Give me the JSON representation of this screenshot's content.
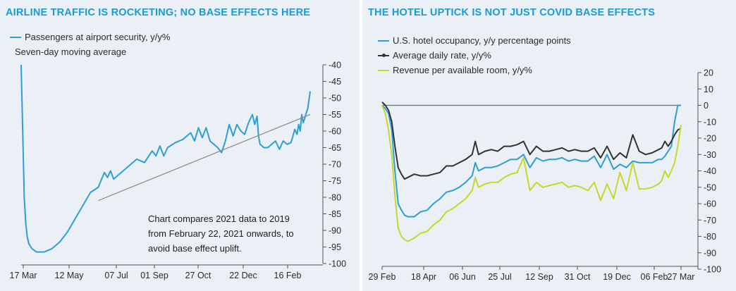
{
  "chart_data": [
    {
      "type": "line",
      "title": "AIRLINE TRAFFIC IS ROCKETING; NO BASE EFFECTS HERE",
      "legend": [
        {
          "label": "Passengers at airport security, y/y%",
          "color": "#2e9fd2"
        },
        {
          "label": "Seven-day moving average"
        }
      ],
      "note": [
        "Chart compares 2021 data to 2019",
        "from February 22, 2021 onwards, to",
        "avoid base effect uplift."
      ],
      "x_tick_labels": [
        "17 Mar",
        "12 May",
        "07 Jul",
        "01 Sep",
        "27 Oct",
        "22 Dec",
        "16 Feb"
      ],
      "ylim": [
        -100,
        -40
      ],
      "y_ticks": [
        -40,
        -45,
        -50,
        -55,
        -60,
        -65,
        -70,
        -75,
        -80,
        -85,
        -90,
        -95,
        -100
      ],
      "y_axis_side": "right",
      "series": [
        {
          "name": "Passengers at airport security, y/y%",
          "color": "#2e9fd2",
          "x": [
            0,
            2,
            4,
            6,
            8,
            10,
            14,
            20,
            30,
            40,
            50,
            60,
            70,
            80,
            90,
            100,
            108,
            112,
            116,
            120,
            130,
            140,
            150,
            160,
            170,
            175,
            180,
            185,
            190,
            200,
            210,
            220,
            225,
            230,
            235,
            240,
            245,
            250,
            255,
            260,
            265,
            270,
            275,
            280,
            285,
            290,
            295,
            300,
            303,
            306,
            308,
            310,
            315,
            320,
            325,
            330,
            335,
            340,
            345,
            350,
            352,
            355,
            358,
            360,
            362,
            364,
            366,
            368,
            370,
            372,
            375
          ],
          "values": [
            -40,
            -60,
            -80,
            -88,
            -92,
            -94,
            -95.5,
            -96.5,
            -96.5,
            -95.5,
            -93.5,
            -90.5,
            -86.5,
            -82.5,
            -78.5,
            -77,
            -72.5,
            -74,
            -72,
            -74.5,
            -72.5,
            -70.5,
            -68.5,
            -69.5,
            -66,
            -67.5,
            -64.5,
            -67.5,
            -65,
            -63.5,
            -62.5,
            -60.5,
            -63,
            -59,
            -62,
            -59,
            -63,
            -64,
            -65,
            -66.5,
            -63,
            -58,
            -61.5,
            -58,
            -60,
            -61,
            -57.5,
            -55,
            -58,
            -55.5,
            -61.5,
            -64,
            -65,
            -65,
            -64,
            -63,
            -65.5,
            -63,
            -64,
            -63.5,
            -62,
            -59.5,
            -61,
            -58,
            -60,
            -55,
            -57.5,
            -56,
            -54.5,
            -53,
            -48
          ]
        },
        {
          "name": "Trend line",
          "color": "#8c8c8c",
          "x": [
            100,
            375
          ],
          "values": [
            -81,
            -55
          ]
        }
      ]
    },
    {
      "type": "line",
      "title": "THE HOTEL UPTICK IS NOT JUST COVID BASE EFFECTS",
      "legend": [
        {
          "label": "U.S. hotel occupancy, y/y percentage points",
          "color": "#2e9fd2"
        },
        {
          "label": "Average daily rate, y/y%",
          "color": "#333333"
        },
        {
          "label": "Revenue per available room, y/y%",
          "color": "#c8d62c"
        }
      ],
      "x_tick_labels": [
        "29 Feb",
        "18 Apr",
        "06 Jun",
        "25 Jul",
        "12 Sep",
        "31 Oct",
        "19 Dec",
        "06 Feb",
        "27 Mar"
      ],
      "ylim": [
        -100,
        20
      ],
      "y_ticks": [
        20,
        10,
        0,
        -10,
        -20,
        -30,
        -40,
        -50,
        -60,
        -70,
        -80,
        -90,
        -100
      ],
      "y_axis_side": "right",
      "series": [
        {
          "name": "U.S. hotel occupancy, y/y percentage points",
          "color": "#2e9fd2",
          "x": [
            0,
            1,
            2,
            3,
            4,
            5,
            6,
            7,
            8,
            10,
            12,
            14,
            16,
            18,
            20,
            22,
            24,
            26,
            28,
            29,
            30,
            32,
            34,
            36,
            38,
            40,
            42,
            44,
            46,
            48,
            50,
            52,
            54,
            56,
            58,
            60,
            62,
            64,
            66,
            68,
            70,
            72,
            74,
            76,
            78,
            80,
            82,
            84,
            86,
            87,
            88,
            89,
            90,
            91,
            92,
            93
          ],
          "values": [
            0,
            -2,
            -5,
            -15,
            -40,
            -60,
            -64,
            -67,
            -68,
            -68,
            -65,
            -64,
            -60,
            -57,
            -53,
            -52,
            -50,
            -47,
            -43,
            -35,
            -40,
            -38,
            -38,
            -37,
            -35,
            -33,
            -33,
            -30,
            -38,
            -32,
            -34,
            -33,
            -33,
            -32,
            -34,
            -33,
            -34,
            -34,
            -31,
            -38,
            -30,
            -39,
            -36,
            -38,
            -34,
            -35,
            -35,
            -35,
            -33,
            -33,
            -31,
            -28,
            -25,
            -10,
            0,
            0
          ]
        },
        {
          "name": "Average daily rate, y/y%",
          "color": "#333333",
          "x": [
            0,
            1,
            2,
            3,
            4,
            5,
            6,
            7,
            8,
            10,
            12,
            14,
            16,
            18,
            20,
            22,
            24,
            26,
            28,
            29,
            30,
            32,
            34,
            36,
            38,
            40,
            42,
            44,
            46,
            48,
            50,
            52,
            54,
            56,
            58,
            60,
            62,
            64,
            66,
            68,
            70,
            72,
            74,
            76,
            78,
            80,
            82,
            84,
            86,
            87,
            88,
            89,
            90,
            91,
            92,
            93
          ],
          "values": [
            2,
            0,
            -3,
            -10,
            -25,
            -38,
            -42,
            -45,
            -44,
            -42,
            -43,
            -43,
            -42,
            -41,
            -37,
            -37,
            -35,
            -33,
            -30,
            -22,
            -30,
            -28,
            -27,
            -28,
            -25,
            -25,
            -24,
            -22,
            -30,
            -25,
            -28,
            -28,
            -27,
            -26,
            -28,
            -27,
            -28,
            -28,
            -26,
            -32,
            -25,
            -33,
            -29,
            -32,
            -18,
            -28,
            -30,
            -29,
            -27,
            -26,
            -22,
            -25,
            -22,
            -18,
            -15,
            -14
          ]
        },
        {
          "name": "Revenue per available room, y/y%",
          "color": "#c8d62c",
          "x": [
            0,
            1,
            2,
            3,
            4,
            5,
            6,
            7,
            8,
            10,
            12,
            14,
            16,
            18,
            20,
            22,
            24,
            26,
            28,
            29,
            30,
            32,
            34,
            36,
            38,
            40,
            42,
            44,
            46,
            48,
            50,
            52,
            54,
            56,
            58,
            60,
            62,
            64,
            66,
            68,
            70,
            72,
            74,
            76,
            78,
            80,
            82,
            84,
            86,
            87,
            88,
            89,
            90,
            91,
            92,
            93
          ],
          "values": [
            0,
            -5,
            -15,
            -30,
            -55,
            -75,
            -80,
            -82,
            -83,
            -81,
            -78,
            -77,
            -73,
            -70,
            -65,
            -63,
            -60,
            -57,
            -52,
            -44,
            -50,
            -48,
            -47,
            -47,
            -44,
            -42,
            -41,
            -32,
            -52,
            -47,
            -50,
            -49,
            -48,
            -47,
            -50,
            -49,
            -50,
            -52,
            -47,
            -58,
            -48,
            -57,
            -41,
            -52,
            -35,
            -51,
            -51,
            -50,
            -48,
            -46,
            -40,
            -44,
            -40,
            -35,
            -25,
            -12
          ]
        }
      ]
    }
  ]
}
